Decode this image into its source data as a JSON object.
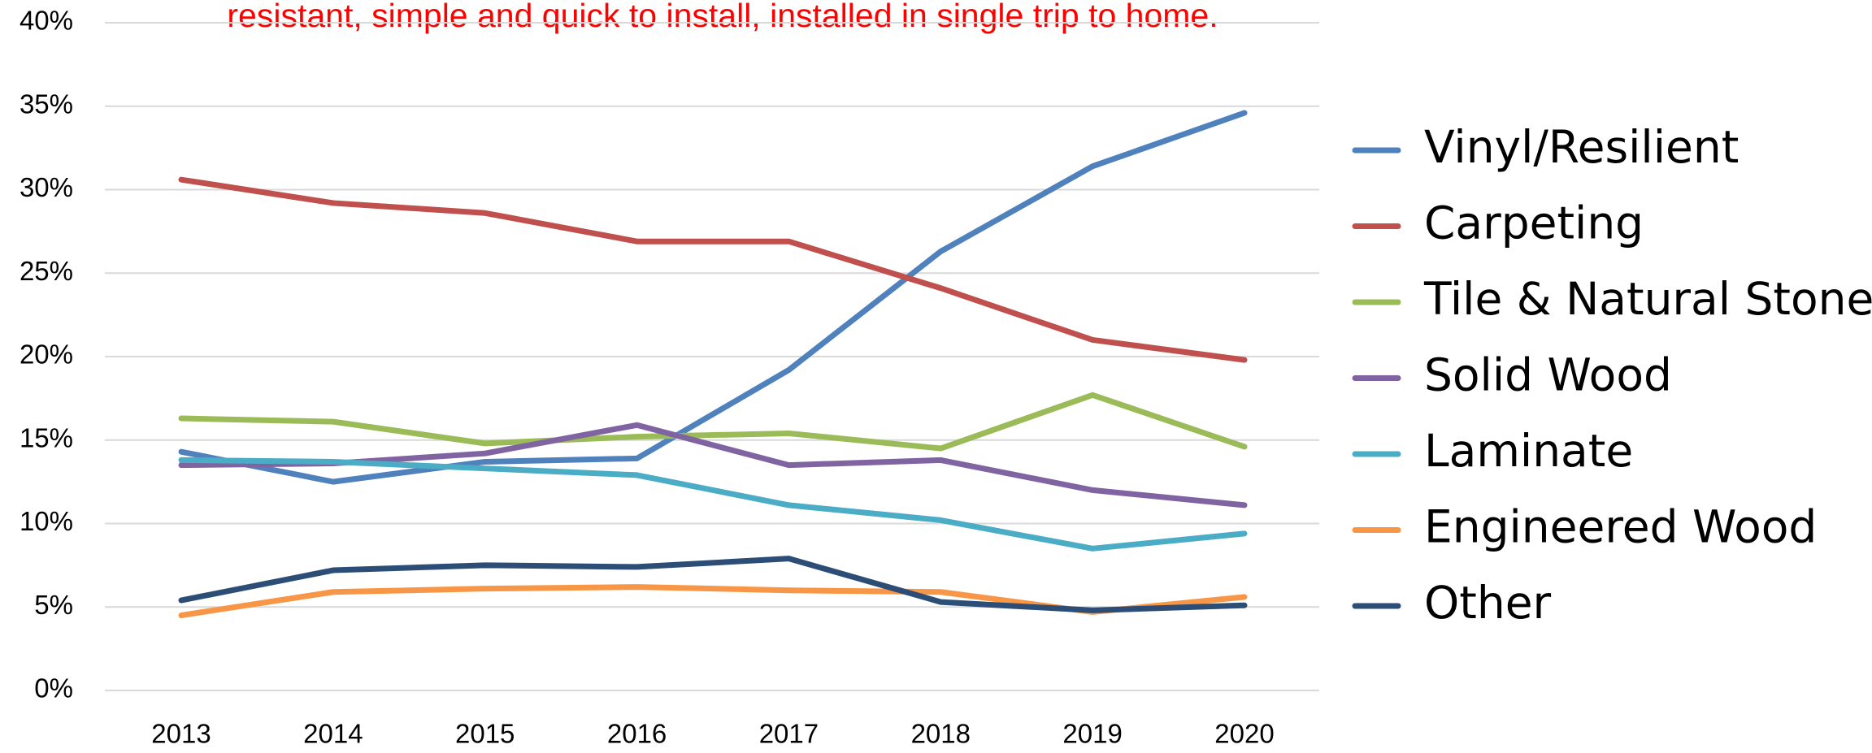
{
  "chart_data": {
    "type": "line",
    "annotation": "resistant, simple and quick to install, installed in single trip to home.",
    "categories": [
      "2013",
      "2014",
      "2015",
      "2016",
      "2017",
      "2018",
      "2019",
      "2020"
    ],
    "series": [
      {
        "name": "Vinyl/Resilient",
        "color": "#4f81bd",
        "values": [
          14.3,
          12.5,
          13.7,
          13.9,
          19.2,
          26.3,
          31.4,
          34.6
        ]
      },
      {
        "name": "Carpeting",
        "color": "#c0504d",
        "values": [
          30.6,
          29.2,
          28.6,
          26.9,
          26.9,
          24.1,
          21.0,
          19.8
        ]
      },
      {
        "name": "Tile & Natural Stone",
        "color": "#9bbb59",
        "values": [
          16.3,
          16.1,
          14.8,
          15.2,
          15.4,
          14.5,
          17.7,
          14.6
        ]
      },
      {
        "name": "Solid Wood",
        "color": "#8064a2",
        "values": [
          13.5,
          13.6,
          14.2,
          15.9,
          13.5,
          13.8,
          12.0,
          11.1
        ]
      },
      {
        "name": "Laminate",
        "color": "#4bacc6",
        "values": [
          13.8,
          13.7,
          13.3,
          12.9,
          11.1,
          10.2,
          8.5,
          9.4
        ]
      },
      {
        "name": "Engineered Wood",
        "color": "#f79646",
        "values": [
          4.5,
          5.9,
          6.1,
          6.2,
          6.0,
          5.9,
          4.7,
          5.6
        ]
      },
      {
        "name": "Other",
        "color": "#2c4d75",
        "values": [
          5.4,
          7.2,
          7.5,
          7.4,
          7.9,
          5.3,
          4.8,
          5.1
        ]
      }
    ],
    "ylim": [
      0,
      40
    ],
    "yticks": [
      {
        "value": 0,
        "label": "0%"
      },
      {
        "value": 5,
        "label": "5%"
      },
      {
        "value": 10,
        "label": "10%"
      },
      {
        "value": 15,
        "label": "15%"
      },
      {
        "value": 20,
        "label": "20%"
      },
      {
        "value": 25,
        "label": "25%"
      },
      {
        "value": 30,
        "label": "30%"
      },
      {
        "value": 35,
        "label": "35%"
      },
      {
        "value": 40,
        "label": "40%"
      }
    ],
    "grid": true,
    "legend": "right"
  }
}
